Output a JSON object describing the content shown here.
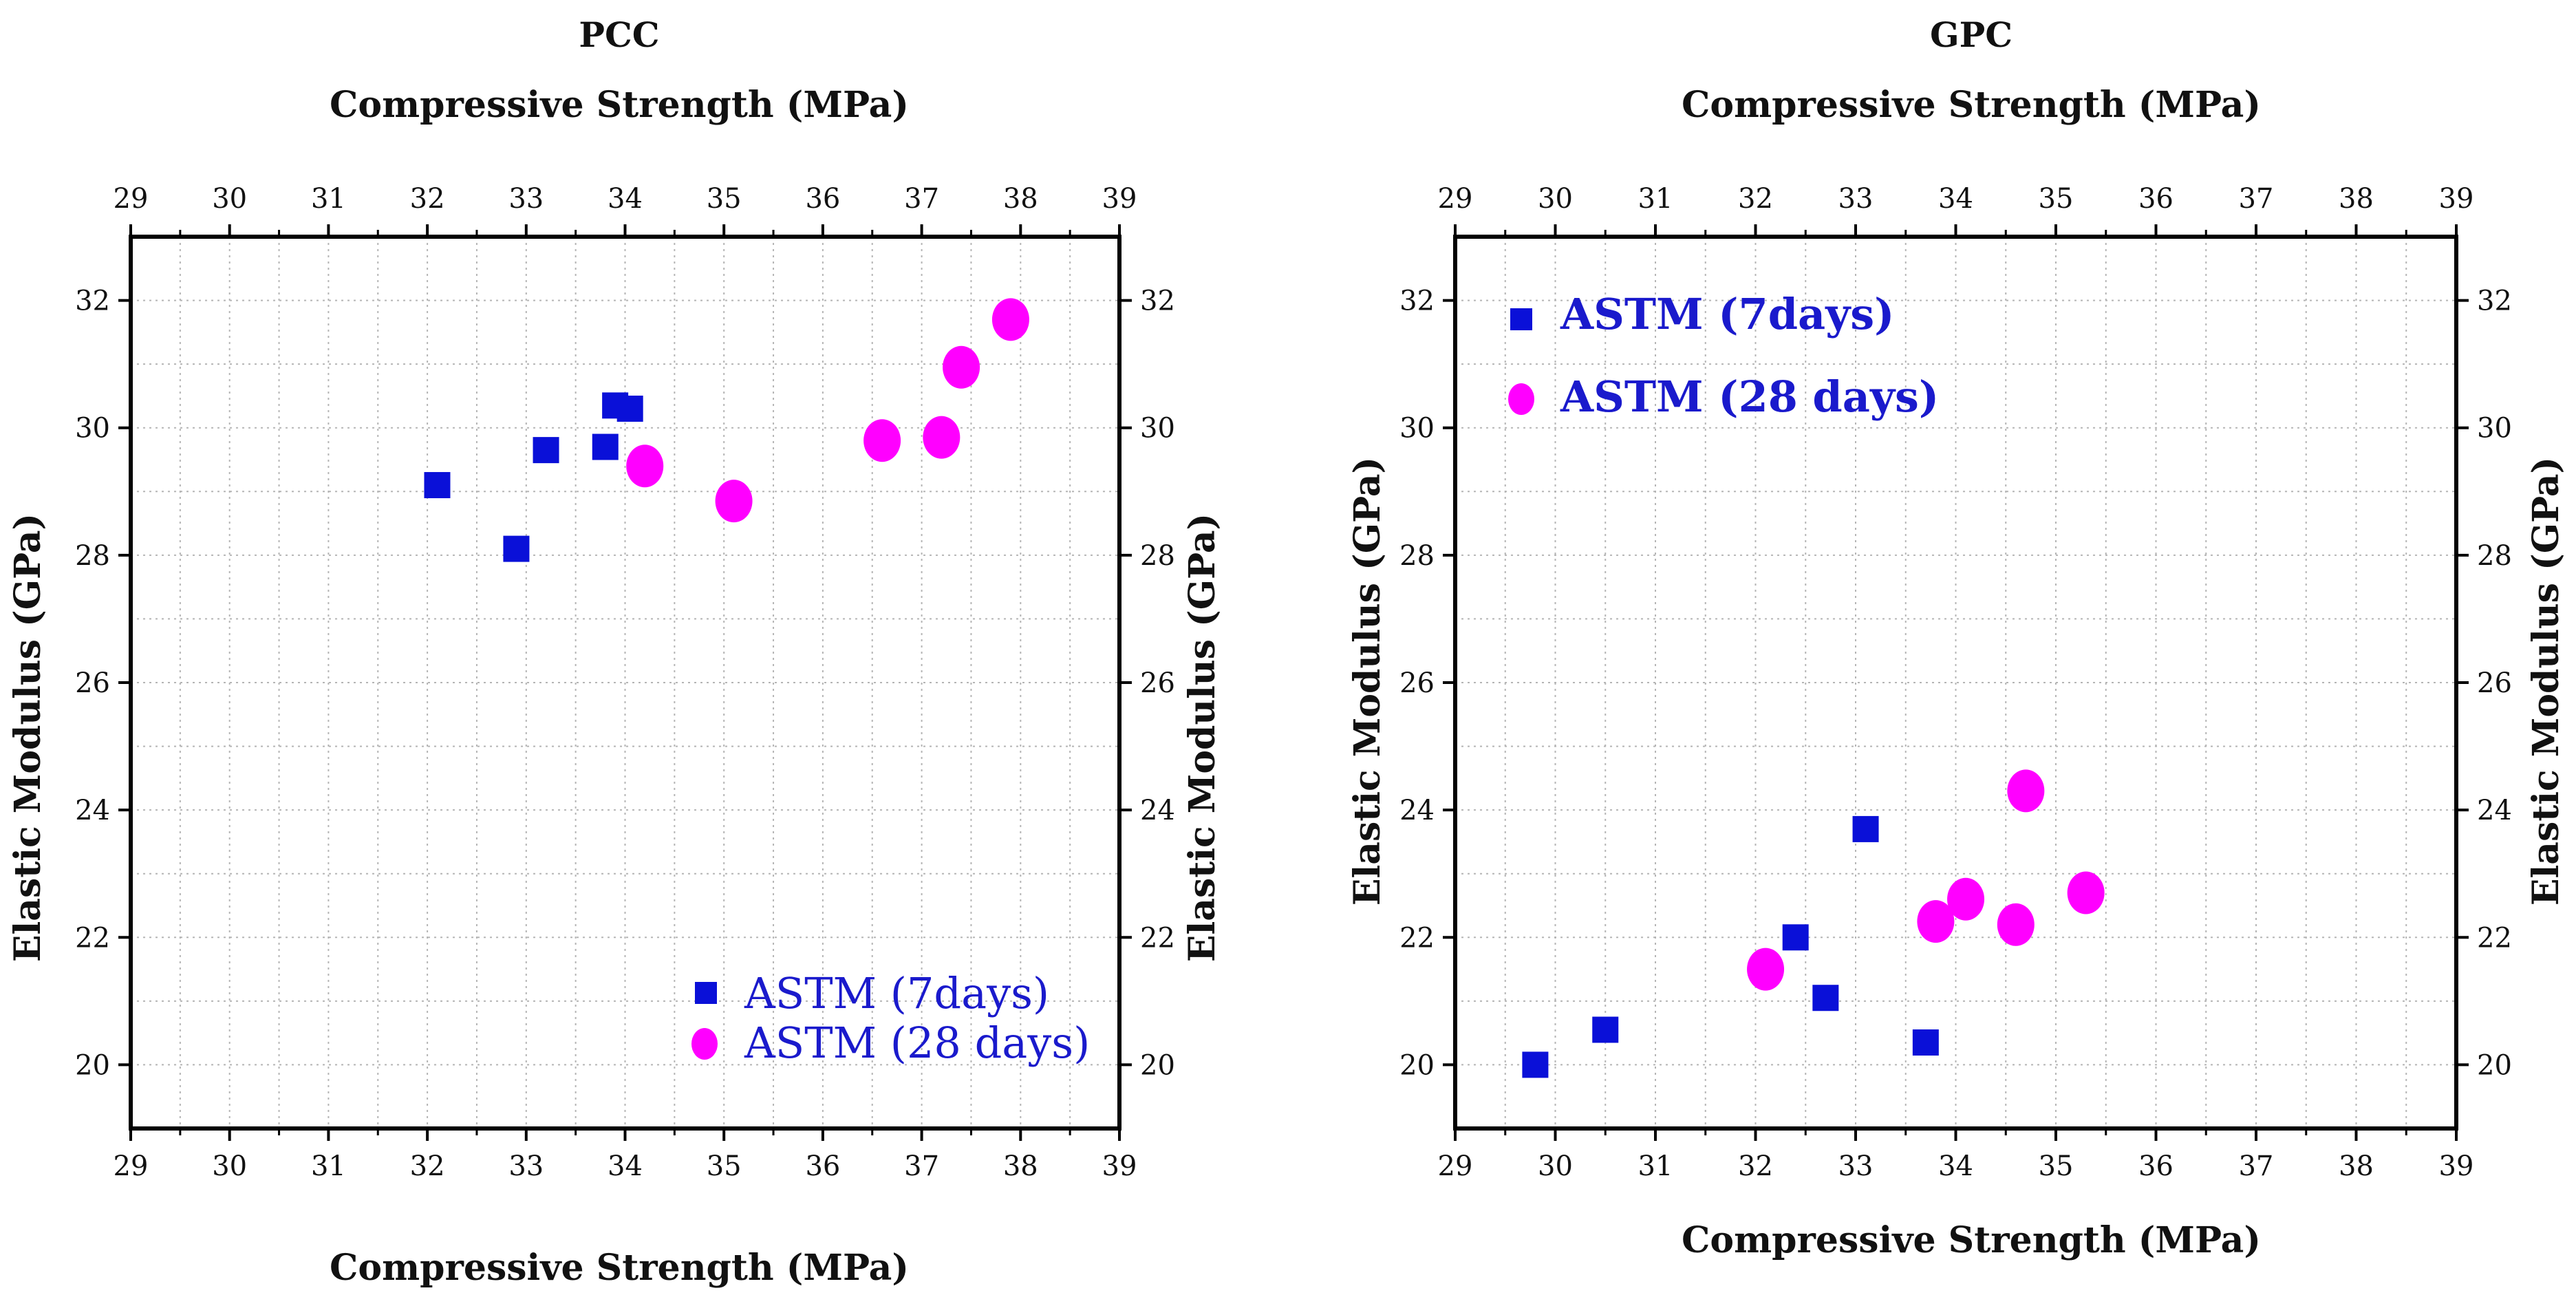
{
  "chart_data": [
    {
      "type": "scatter",
      "title": "PCC",
      "xlabel": "Compressive Strength (MPa)",
      "x2label": "Compressive Strength (MPa)",
      "ylabel": "Elastic Modulus (GPa)",
      "y2label": "Elastic Modulus (GPa)",
      "xlim": [
        29,
        39
      ],
      "ylim": [
        19,
        33
      ],
      "xticks": [
        29,
        30,
        31,
        32,
        33,
        34,
        35,
        36,
        37,
        38,
        39
      ],
      "yticks": [
        20,
        22,
        24,
        26,
        28,
        30,
        32
      ],
      "grid": true,
      "legend": "bottom-right",
      "series": [
        {
          "name": "ASTM (7days)",
          "marker": "square",
          "color": "#0a10d8",
          "label_color": "#1a1acc",
          "points": [
            [
              32.1,
              29.1
            ],
            [
              32.9,
              28.1
            ],
            [
              33.2,
              29.65
            ],
            [
              33.8,
              29.7
            ],
            [
              33.9,
              30.35
            ],
            [
              34.05,
              30.3
            ]
          ]
        },
        {
          "name": "ASTM (28 days)",
          "marker": "circle",
          "color": "#ff00ff",
          "label_color": "#1a1acc",
          "points": [
            [
              34.2,
              29.4
            ],
            [
              35.1,
              28.85
            ],
            [
              36.6,
              29.8
            ],
            [
              37.2,
              29.85
            ],
            [
              37.4,
              30.95
            ],
            [
              37.9,
              31.7
            ]
          ]
        }
      ]
    },
    {
      "type": "scatter",
      "title": "GPC",
      "xlabel": "Compressive Strength (MPa)",
      "x2label": "Compressive Strength (MPa)",
      "ylabel": "Elastic Modulus (GPa)",
      "y2label": "Elastic Modulus (GPa)",
      "xlim": [
        29,
        39
      ],
      "ylim": [
        19,
        33
      ],
      "xticks": [
        29,
        30,
        31,
        32,
        33,
        34,
        35,
        36,
        37,
        38,
        39
      ],
      "yticks": [
        20,
        22,
        24,
        26,
        28,
        30,
        32
      ],
      "grid": true,
      "legend": "top-left",
      "series": [
        {
          "name": "ASTM (7days)",
          "marker": "square",
          "color": "#0a10d8",
          "label_color": "#1a1acc",
          "points": [
            [
              29.8,
              20.0
            ],
            [
              30.5,
              20.55
            ],
            [
              32.4,
              22.0
            ],
            [
              32.7,
              21.05
            ],
            [
              33.1,
              23.7
            ],
            [
              33.7,
              20.35
            ]
          ]
        },
        {
          "name": "ASTM (28 days)",
          "marker": "circle",
          "color": "#ff00ff",
          "label_color": "#1a1acc",
          "points": [
            [
              32.1,
              21.5
            ],
            [
              33.8,
              22.25
            ],
            [
              34.1,
              22.6
            ],
            [
              34.6,
              22.2
            ],
            [
              34.7,
              24.3
            ],
            [
              35.3,
              22.7
            ]
          ]
        }
      ]
    }
  ]
}
